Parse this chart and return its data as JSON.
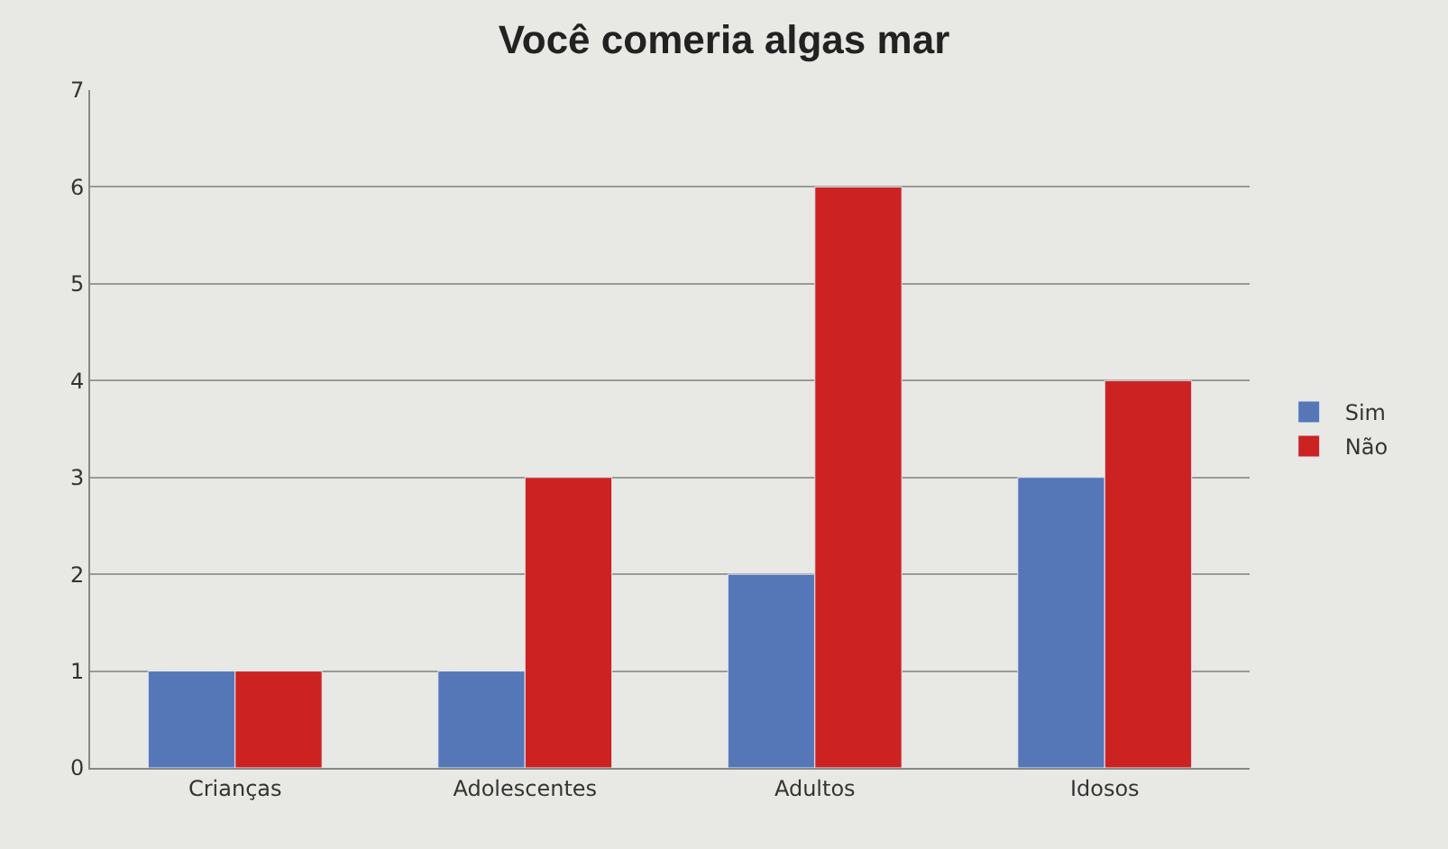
{
  "chart_data": {
    "type": "bar",
    "title": "Você comeria algas mar",
    "categories": [
      "Crianças",
      "Adolescentes",
      "Adultos",
      "Idosos"
    ],
    "series": [
      {
        "name": "Sim",
        "color": "#5577b8",
        "values": [
          1,
          1,
          2,
          3
        ]
      },
      {
        "name": "Não",
        "color": "#cc2222",
        "values": [
          1,
          3,
          6,
          4
        ]
      }
    ],
    "ylim": [
      0,
      7
    ],
    "yticks": [
      0,
      1,
      2,
      3,
      4,
      5,
      6,
      7
    ],
    "grid": "y",
    "legend": "right"
  }
}
